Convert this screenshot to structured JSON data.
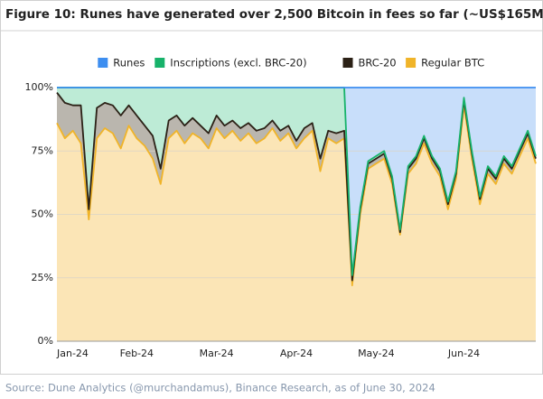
{
  "chart_data": {
    "type": "stacked_area",
    "title": "Figure 10: Runes have generated over 2,500 Bitcoin in fees so far (~US$165M)",
    "source": "Source: Dune Analytics (@murchandamus), Binance Research, as of June 30, 2024",
    "categories": [
      "Jan-24",
      null,
      null,
      null,
      null,
      null,
      null,
      null,
      null,
      null,
      "Feb-24",
      null,
      null,
      null,
      null,
      null,
      null,
      null,
      null,
      null,
      "Mar-24",
      null,
      null,
      null,
      null,
      null,
      null,
      null,
      null,
      null,
      "Apr-24",
      null,
      null,
      null,
      null,
      null,
      null,
      null,
      null,
      null,
      "May-24",
      null,
      null,
      null,
      null,
      null,
      null,
      null,
      null,
      null,
      null,
      "Jun-24",
      null,
      null,
      null,
      null,
      null,
      null,
      null,
      null,
      null
    ],
    "series": [
      {
        "name": "Runes",
        "color": "#3d8ef0",
        "fill": "#c8defa",
        "values": [
          0,
          0,
          0,
          0,
          0,
          0,
          0,
          0,
          0,
          0,
          0,
          0,
          0,
          0,
          0,
          0,
          0,
          0,
          0,
          0,
          0,
          0,
          0,
          0,
          0,
          0,
          0,
          0,
          0,
          0,
          0,
          0,
          0,
          0,
          0,
          0,
          0,
          74,
          47,
          29,
          27,
          25,
          35,
          56,
          31,
          27,
          19,
          27,
          32,
          45,
          33,
          4,
          25,
          43,
          31,
          35,
          27,
          31,
          24,
          17,
          27
        ]
      },
      {
        "name": "Inscriptions (excl. BRC-20)",
        "color": "#17b26a",
        "fill": "#bdebd6",
        "values": [
          2,
          6,
          7,
          7,
          48,
          8,
          6,
          7,
          11,
          7,
          11,
          15,
          19,
          32,
          13,
          11,
          15,
          12,
          15,
          18,
          11,
          15,
          13,
          16,
          14,
          17,
          16,
          13,
          17,
          15,
          21,
          16,
          14,
          28,
          17,
          18,
          17,
          2,
          1,
          1,
          1,
          1,
          1,
          1,
          1,
          1,
          1,
          1,
          1,
          1,
          1,
          1,
          1,
          1,
          1,
          1,
          1,
          1,
          1,
          1,
          1
        ]
      },
      {
        "name": "BRC-20",
        "color": "#2b2116",
        "fill": "#bab6ae",
        "values": [
          12,
          14,
          10,
          15,
          4,
          12,
          10,
          11,
          13,
          8,
          9,
          8,
          9,
          6,
          7,
          6,
          7,
          6,
          5,
          6,
          5,
          5,
          4,
          5,
          4,
          5,
          4,
          3,
          4,
          3,
          3,
          4,
          3,
          5,
          3,
          4,
          3,
          2,
          2,
          2,
          2,
          2,
          2,
          1,
          2,
          2,
          2,
          2,
          2,
          2,
          2,
          2,
          2,
          2,
          2,
          2,
          2,
          2,
          2,
          2,
          2
        ]
      },
      {
        "name": "Regular BTC",
        "color": "#f0b429",
        "fill": "#fbe5b6",
        "values": [
          86,
          80,
          83,
          78,
          48,
          80,
          84,
          82,
          76,
          85,
          80,
          77,
          72,
          62,
          80,
          83,
          78,
          82,
          80,
          76,
          84,
          80,
          83,
          79,
          82,
          78,
          80,
          84,
          79,
          82,
          76,
          80,
          83,
          67,
          80,
          78,
          80,
          22,
          50,
          68,
          70,
          72,
          62,
          42,
          66,
          70,
          78,
          70,
          65,
          52,
          64,
          93,
          72,
          54,
          66,
          62,
          70,
          66,
          73,
          80,
          70
        ]
      }
    ],
    "ylim": [
      0,
      100
    ],
    "yticks": [
      {
        "value": 0,
        "label": "0%"
      },
      {
        "value": 25,
        "label": "25%"
      },
      {
        "value": 50,
        "label": "50%"
      },
      {
        "value": 75,
        "label": "75%"
      },
      {
        "value": 100,
        "label": "100%"
      }
    ],
    "grid": true,
    "legend": "top"
  }
}
